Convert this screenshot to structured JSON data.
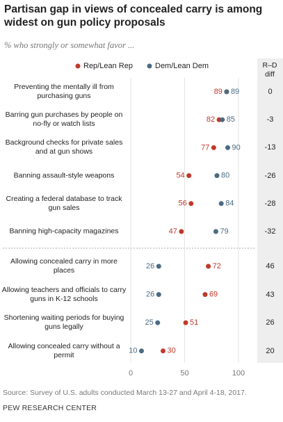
{
  "chart_data": {
    "type": "dot",
    "title": "Partisan gap in views of concealed carry is among widest on gun policy proposals",
    "subtitle": "% who strongly or somewhat favor ...",
    "categories": [
      "Preventing the mentally ill from purchasing guns",
      "Barring gun purchases by people on no-fly or watch lists",
      "Background checks for private sales and at gun shows",
      "Banning assault-style weapons",
      "Creating a federal database to track gun sales",
      "Banning high-capacity magazines",
      "Allowing concealed carry in more places",
      "Allowing teachers and officials to carry guns in K-12 schools",
      "Shortening waiting periods for buying guns legally",
      "Allowing concealed carry without a permit"
    ],
    "series": [
      {
        "name": "Rep/Lean Rep",
        "color": "#bf3a2b",
        "values": [
          89,
          82,
          77,
          54,
          56,
          47,
          72,
          69,
          51,
          30
        ]
      },
      {
        "name": "Dem/Lean Dem",
        "color": "#4b6b82",
        "values": [
          89,
          85,
          90,
          80,
          84,
          79,
          26,
          26,
          25,
          10
        ]
      }
    ],
    "diff_header": "R–D diff",
    "diff": [
      0,
      -3,
      -13,
      -26,
      -28,
      -32,
      46,
      43,
      26,
      20
    ],
    "xlim": [
      0,
      100
    ],
    "xticks": [
      0,
      50,
      100
    ],
    "grid": true,
    "source": "Source: Survey of U.S. adults conducted March 13-27 and April 4-18, 2017.",
    "footer": "PEW RESEARCH CENTER"
  }
}
